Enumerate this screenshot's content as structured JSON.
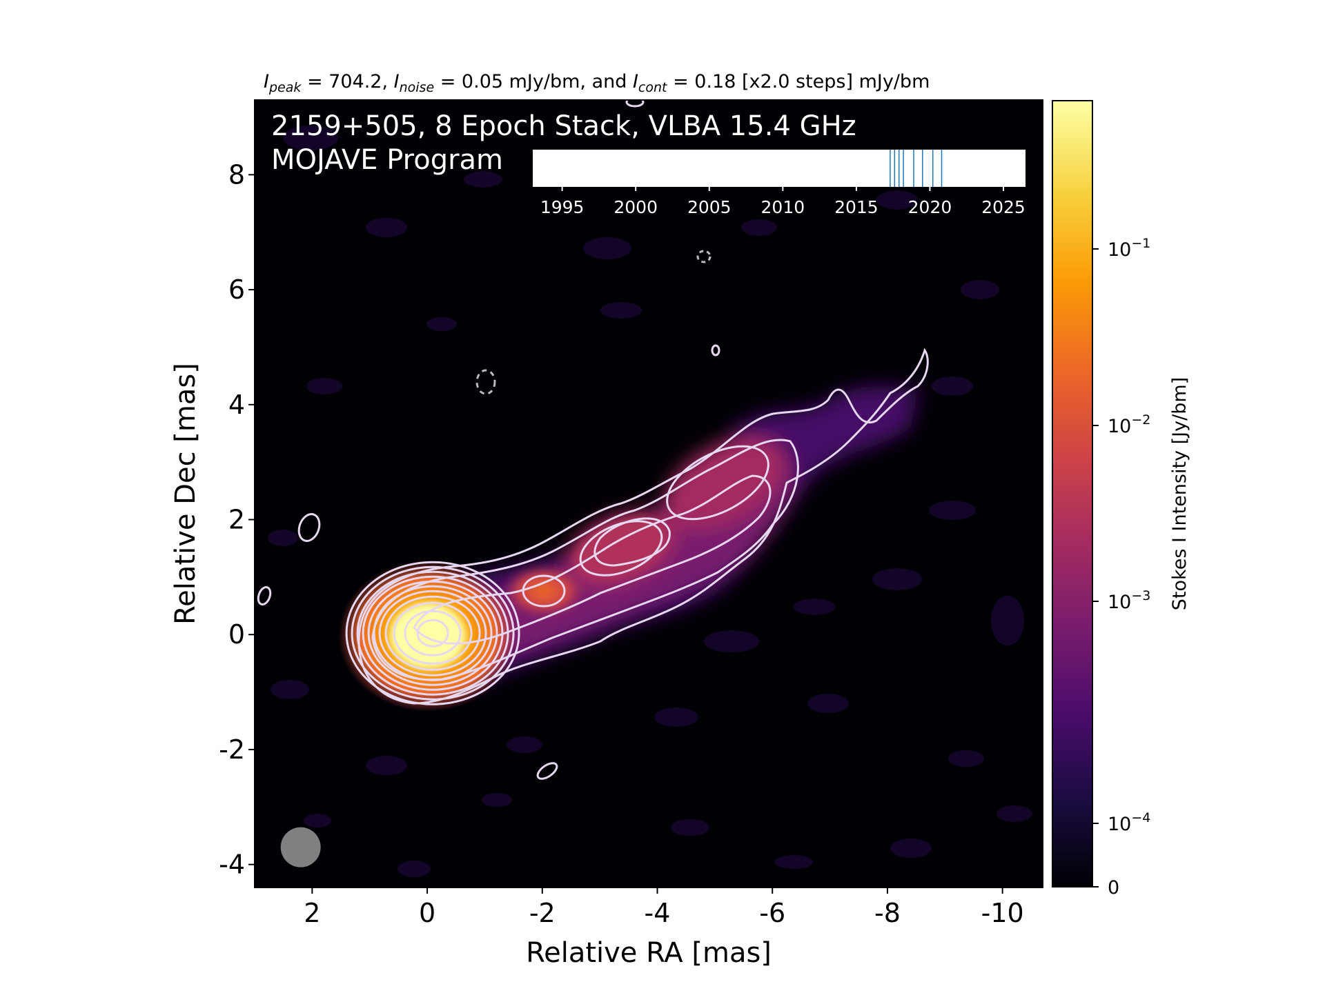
{
  "chart_data": {
    "type": "heatmap",
    "header": {
      "peak_sym": "I",
      "peak_sub": "peak",
      "peak_val": " = 704.2, ",
      "noise_sym": "I",
      "noise_sub": "noise",
      "noise_val": " = 0.05 mJy/bm, and ",
      "cont_sym": "I",
      "cont_sub": "cont",
      "cont_val": " = 0.18 [x2.0 steps] mJy/bm"
    },
    "source_line": "2159+505, 8 Epoch Stack, VLBA 15.4 GHz",
    "program_line": "MOJAVE Program",
    "xlabel": "Relative RA [mas]",
    "ylabel": "Relative Dec [mas]",
    "xlim": [
      3,
      -10.7
    ],
    "ylim": [
      -4.4,
      9.3
    ],
    "xticks": [
      2,
      0,
      -2,
      -4,
      -6,
      -8,
      -10
    ],
    "yticks": [
      8,
      6,
      4,
      2,
      0,
      -2,
      -4
    ],
    "core": {
      "x": 0,
      "y": 0,
      "peak_jy": 0.7042
    },
    "knots": [
      {
        "x": -2.1,
        "y": 0.8
      },
      {
        "x": -3.7,
        "y": 1.6
      },
      {
        "x": -5.2,
        "y": 2.6
      }
    ],
    "jet_tip": {
      "x": -8.7,
      "y": 4.9
    },
    "beam": {
      "x": 2.2,
      "y": -3.7,
      "major": 0.7,
      "minor": 0.7,
      "color": "#808080"
    },
    "epoch_axis": {
      "range": [
        1993,
        2026.5
      ],
      "ticks": [
        1995,
        2000,
        2005,
        2010,
        2015,
        2020,
        2025
      ],
      "epochs": [
        2017.3,
        2017.6,
        2017.9,
        2018.2,
        2018.9,
        2019.5,
        2020.2,
        2020.8
      ],
      "line_color": "#1f77b4"
    },
    "colorbar": {
      "label": "Stokes I Intensity [Jy/bm]",
      "ticks": [
        {
          "value": 0,
          "label": "0"
        },
        {
          "value": 0.0001,
          "label": "10",
          "exp": "−4"
        },
        {
          "value": 0.001,
          "label": "10",
          "exp": "−3"
        },
        {
          "value": 0.01,
          "label": "10",
          "exp": "−2"
        },
        {
          "value": 0.1,
          "label": "10",
          "exp": "−1"
        }
      ],
      "colormap": "inferno",
      "colors": [
        "#000004",
        "#1b0c41",
        "#4a0c6b",
        "#781c6d",
        "#a52c60",
        "#cf4446",
        "#ed6925",
        "#fb9b06",
        "#f7d13d",
        "#fcffa4"
      ]
    },
    "contour_color": "#e6d8f0"
  }
}
